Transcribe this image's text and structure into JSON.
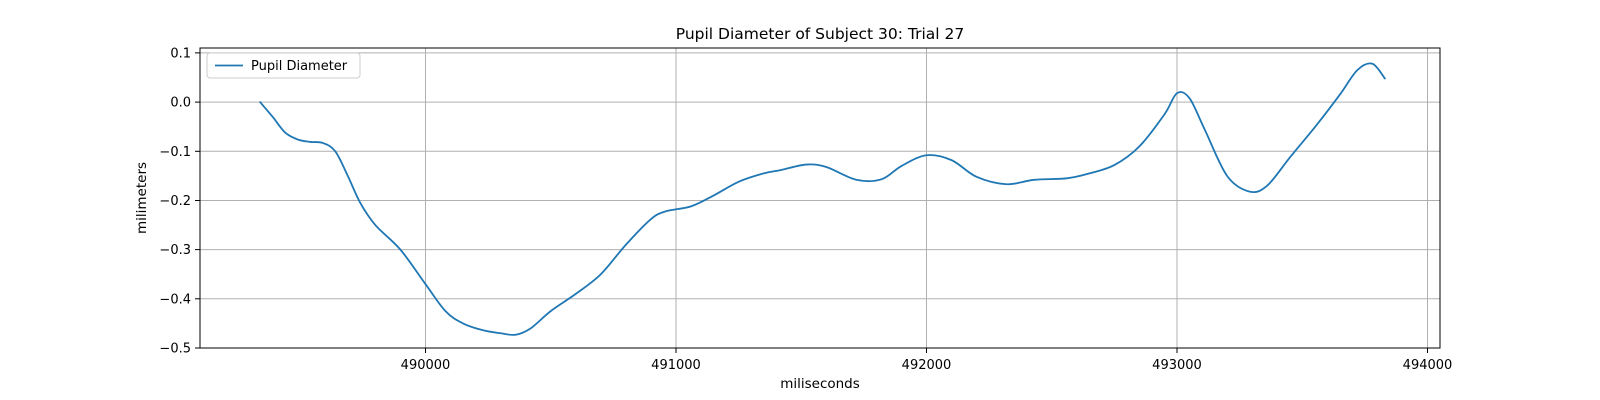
{
  "chart_data": {
    "type": "line",
    "title": "Pupil Diameter of Subject 30: Trial 27",
    "xlabel": "miliseconds",
    "ylabel": "milimeters",
    "xlim": [
      489100,
      494050
    ],
    "ylim": [
      -0.5,
      0.11
    ],
    "xticks": [
      490000,
      491000,
      492000,
      493000,
      494000
    ],
    "yticks": [
      -0.5,
      -0.4,
      -0.3,
      -0.2,
      -0.1,
      0.0,
      0.1
    ],
    "ytick_labels": [
      "−0.5",
      "−0.4",
      "−0.3",
      "−0.2",
      "−0.1",
      "0.0",
      "0.1"
    ],
    "grid": true,
    "legend_position": "top-left",
    "series": [
      {
        "name": "Pupil Diameter",
        "color": "#1f77b4",
        "x": [
          489340,
          489390,
          489440,
          489490,
          489540,
          489590,
          489640,
          489690,
          489740,
          489800,
          489900,
          490000,
          490080,
          490150,
          490230,
          490300,
          490360,
          490420,
          490500,
          490600,
          490700,
          490800,
          490900,
          490960,
          491060,
          491150,
          491250,
          491350,
          491420,
          491520,
          491600,
          491720,
          491820,
          491900,
          492000,
          492100,
          492200,
          492320,
          492430,
          492560,
          492650,
          492750,
          492850,
          492950,
          493000,
          493050,
          493110,
          493200,
          493290,
          493360,
          493450,
          493560,
          493650,
          493720,
          493780,
          493830
        ],
        "y": [
          0.0,
          -0.03,
          -0.062,
          -0.076,
          -0.081,
          -0.083,
          -0.1,
          -0.15,
          -0.205,
          -0.25,
          -0.3,
          -0.37,
          -0.425,
          -0.45,
          -0.464,
          -0.47,
          -0.473,
          -0.46,
          -0.425,
          -0.39,
          -0.35,
          -0.29,
          -0.238,
          -0.222,
          -0.212,
          -0.19,
          -0.162,
          -0.145,
          -0.138,
          -0.127,
          -0.132,
          -0.158,
          -0.157,
          -0.13,
          -0.108,
          -0.118,
          -0.152,
          -0.167,
          -0.158,
          -0.155,
          -0.145,
          -0.128,
          -0.09,
          -0.025,
          0.018,
          0.008,
          -0.055,
          -0.15,
          -0.182,
          -0.17,
          -0.113,
          -0.045,
          0.015,
          0.065,
          0.078,
          0.048
        ]
      }
    ]
  }
}
